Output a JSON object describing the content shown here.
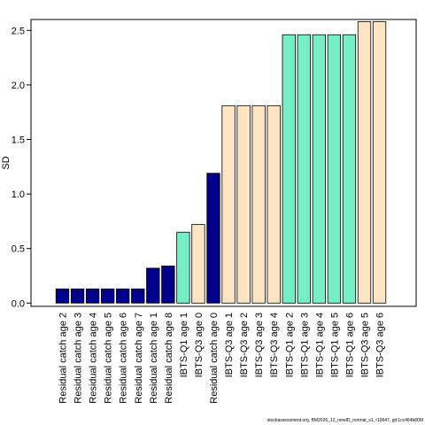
{
  "chart_data": {
    "type": "bar",
    "ylabel": "SD",
    "caption": "stockassessment.org, BM2026_12_newID_normal_v1, r19647, git:1cc464b806f",
    "categories": [
      "Residual catch age 2",
      "Residual catch age 3",
      "Residual catch age 4",
      "Residual catch age 5",
      "Residual catch age 6",
      "Residual catch age 7",
      "Residual catch age 1",
      "Residual catch age 8",
      "IBTS-Q1 age 1",
      "IBTS-Q3 age 0",
      "Residual catch age 0",
      "IBTS-Q3 age 1",
      "IBTS-Q3 age 2",
      "IBTS-Q3 age 3",
      "IBTS-Q3 age 4",
      "IBTS-Q1 age 2",
      "IBTS-Q1 age 3",
      "IBTS-Q1 age 4",
      "IBTS-Q1 age 5",
      "IBTS-Q1 age 6",
      "IBTS-Q3 age 5",
      "IBTS-Q3 age 6"
    ],
    "values": [
      0.13,
      0.13,
      0.13,
      0.13,
      0.13,
      0.13,
      0.32,
      0.34,
      0.65,
      0.72,
      1.19,
      1.81,
      1.81,
      1.81,
      1.81,
      2.46,
      2.46,
      2.46,
      2.46,
      2.46,
      2.58,
      2.58
    ],
    "colors": [
      "#00008b",
      "#00008b",
      "#00008b",
      "#00008b",
      "#00008b",
      "#00008b",
      "#00008b",
      "#00008b",
      "#76eec6",
      "#ffe4c4",
      "#00008b",
      "#ffe4c4",
      "#ffe4c4",
      "#ffe4c4",
      "#ffe4c4",
      "#76eec6",
      "#76eec6",
      "#76eec6",
      "#76eec6",
      "#76eec6",
      "#ffe4c4",
      "#ffe4c4"
    ],
    "ylim": [
      -0.03,
      2.6
    ],
    "yticks": [
      {
        "value": 0,
        "label": "0.0"
      },
      0.5,
      {
        "value": 1,
        "label": "1.0"
      },
      1.5,
      {
        "value": 2,
        "label": "2.0"
      },
      2.5
    ]
  }
}
